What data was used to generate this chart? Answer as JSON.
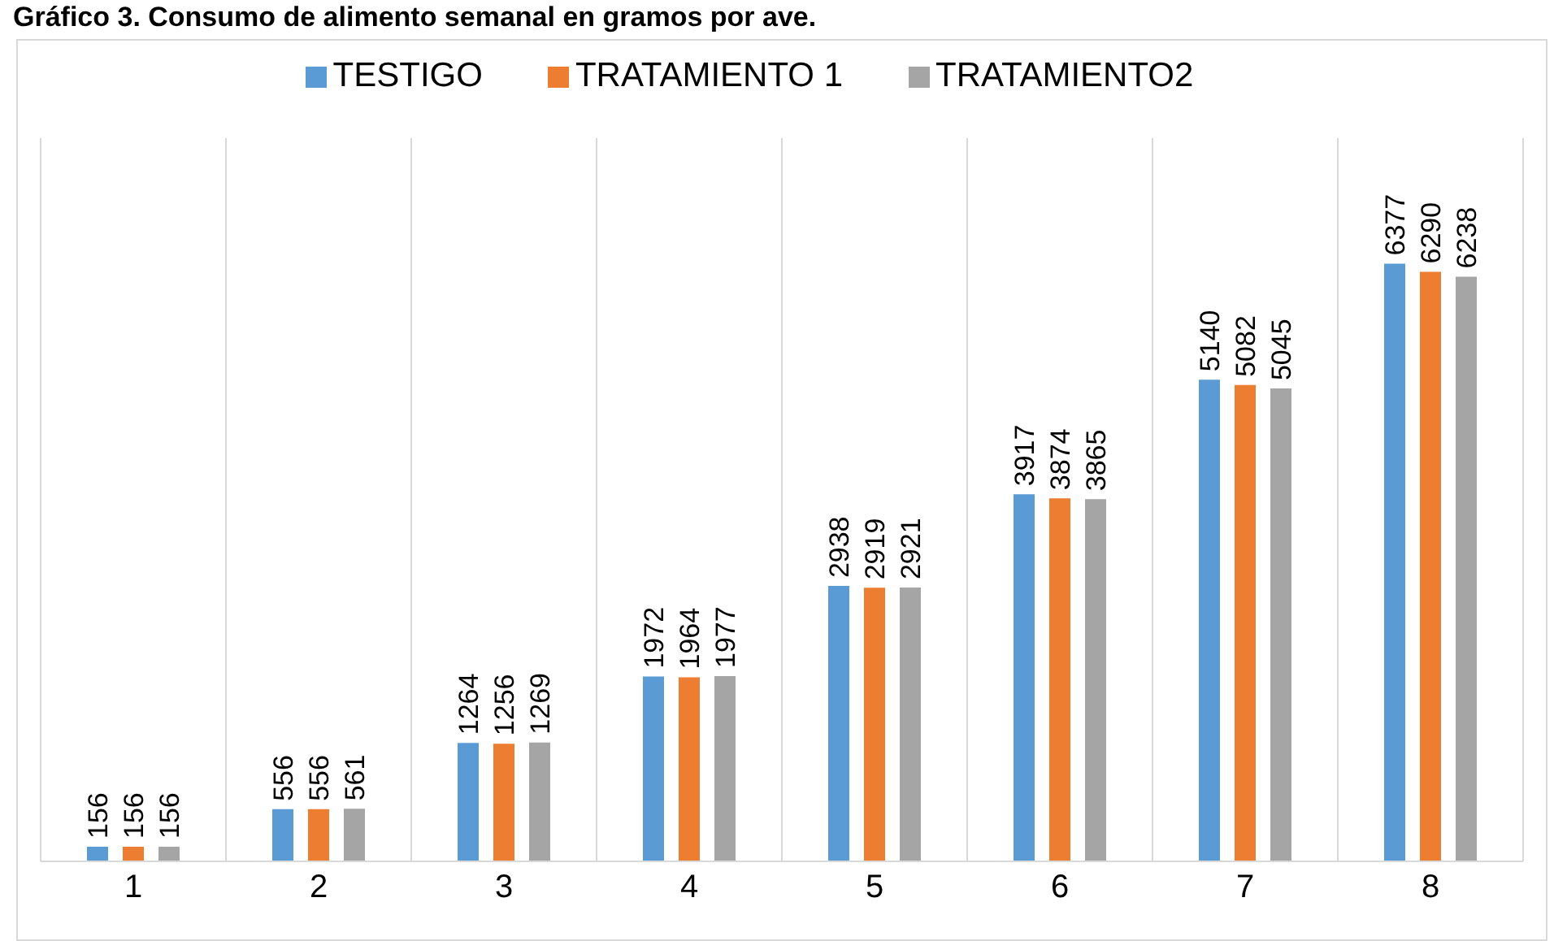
{
  "chart_data": {
    "type": "bar",
    "title": "Gráfico 3. Consumo de alimento semanal en gramos por ave.",
    "categories": [
      "1",
      "2",
      "3",
      "4",
      "5",
      "6",
      "7",
      "8"
    ],
    "series": [
      {
        "name": "TESTIGO",
        "color": "#5b9bd5",
        "values": [
          156,
          556,
          1264,
          1972,
          2938,
          3917,
          5140,
          6377
        ]
      },
      {
        "name": "TRATAMIENTO 1",
        "color": "#ed7d31",
        "values": [
          156,
          556,
          1256,
          1964,
          2919,
          3874,
          5082,
          6290
        ]
      },
      {
        "name": "TRATAMIENTO2",
        "color": "#a5a5a5",
        "values": [
          156,
          561,
          1269,
          1977,
          2921,
          3865,
          5045,
          6238
        ]
      }
    ],
    "data_labels": true,
    "grid": "x",
    "legend": "top"
  }
}
